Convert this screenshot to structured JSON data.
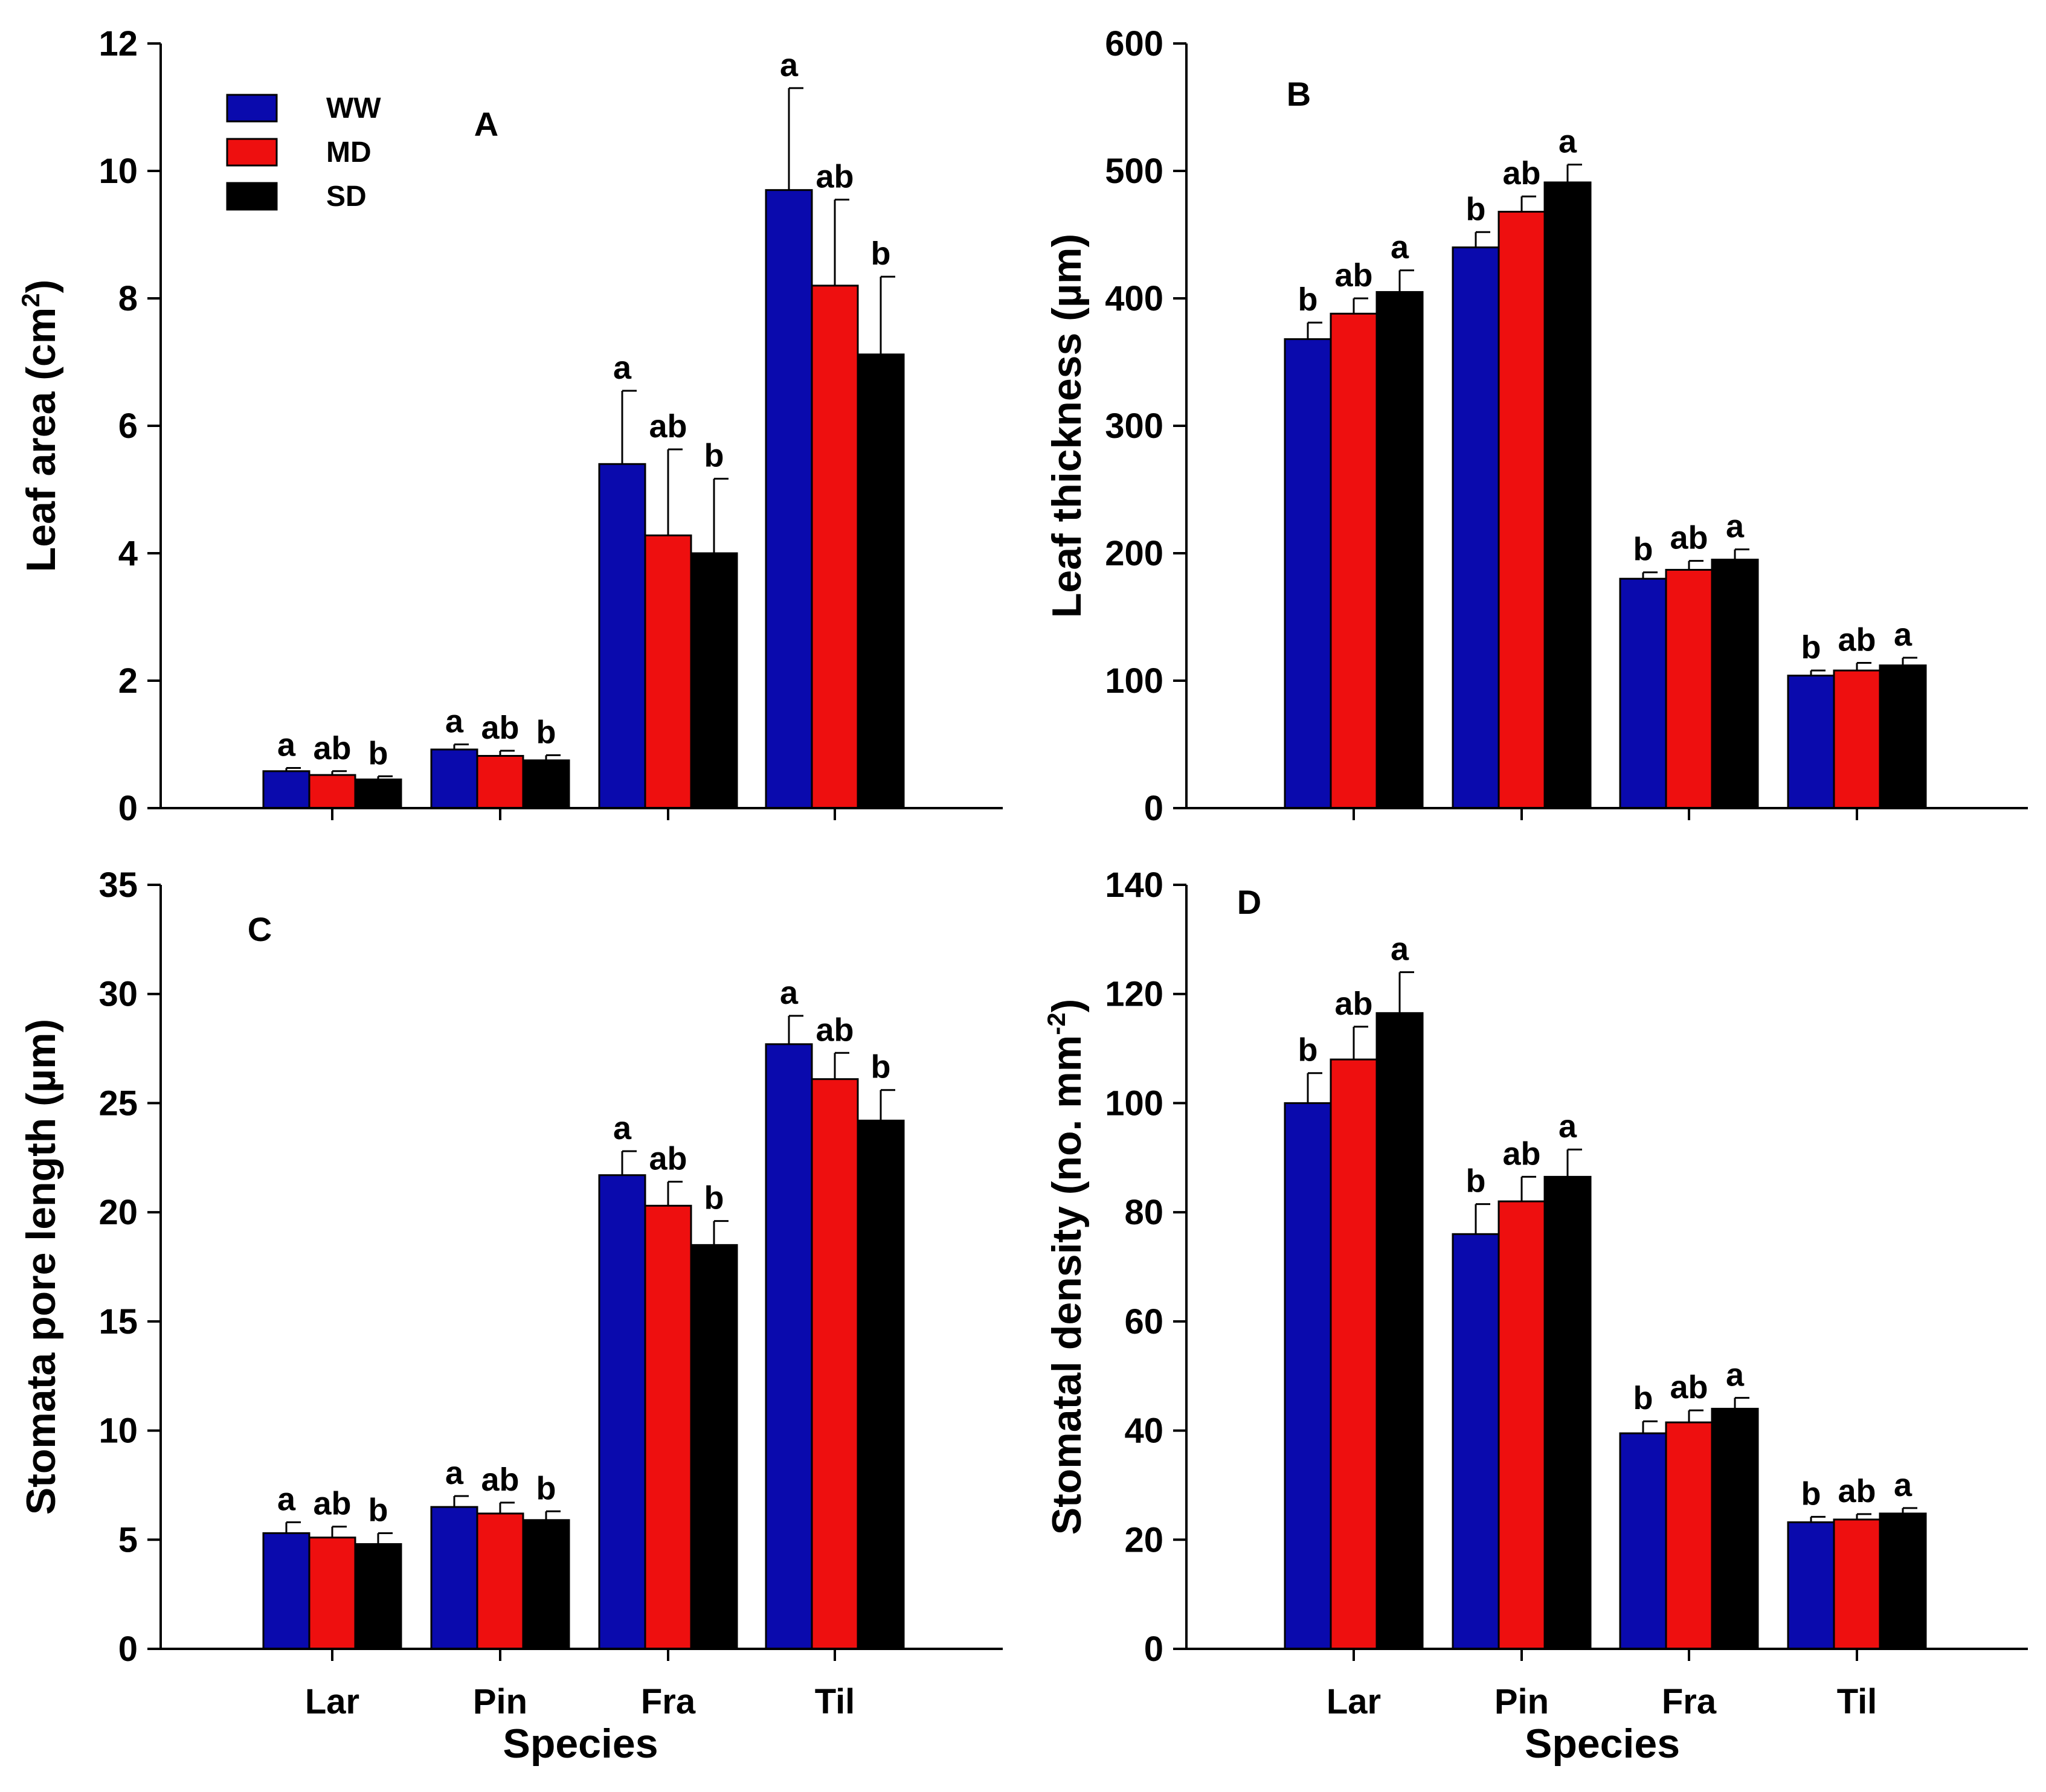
{
  "figure": {
    "legend": [
      {
        "name": "WW",
        "color": "#0a0aad"
      },
      {
        "name": "MD",
        "color": "#ee0f0f"
      },
      {
        "name": "SD",
        "color": "#000000"
      }
    ]
  },
  "chart_data": [
    {
      "panel": "A",
      "type": "bar",
      "categories": [
        "Lar",
        "Pin",
        "Fra",
        "Til"
      ],
      "xlabel": "",
      "ylabel": "Leaf area (cm²)",
      "ylabel_main": "Leaf area (cm",
      "ylabel_sup": "2",
      "ylabel_end": ")",
      "ylim": [
        0,
        12
      ],
      "yticks": [
        0,
        2,
        4,
        6,
        8,
        10,
        12
      ],
      "series": [
        {
          "name": "WW",
          "values": [
            0.58,
            0.92,
            5.4,
            9.7
          ],
          "errors": [
            0.05,
            0.08,
            1.15,
            1.6
          ],
          "labels": [
            "a",
            "a",
            "a",
            "a"
          ]
        },
        {
          "name": "MD",
          "values": [
            0.52,
            0.82,
            4.28,
            8.2
          ],
          "errors": [
            0.06,
            0.08,
            1.35,
            1.35
          ],
          "labels": [
            "ab",
            "ab",
            "ab",
            "ab"
          ]
        },
        {
          "name": "SD",
          "values": [
            0.45,
            0.75,
            4.0,
            7.12
          ],
          "errors": [
            0.05,
            0.08,
            1.17,
            1.22
          ],
          "labels": [
            "b",
            "b",
            "b",
            "b"
          ]
        }
      ]
    },
    {
      "panel": "B",
      "type": "bar",
      "categories": [
        "Lar",
        "Pin",
        "Fra",
        "Til"
      ],
      "xlabel": "",
      "ylabel": "Leaf thickness (µm)",
      "ylim": [
        0,
        600
      ],
      "yticks": [
        0,
        100,
        200,
        300,
        400,
        500,
        600
      ],
      "series": [
        {
          "name": "WW",
          "values": [
            368,
            440,
            180,
            104
          ],
          "errors": [
            13,
            12,
            5,
            4
          ],
          "labels": [
            "b",
            "b",
            "b",
            "b"
          ]
        },
        {
          "name": "MD",
          "values": [
            388,
            468,
            187,
            108
          ],
          "errors": [
            12,
            12,
            7,
            6
          ],
          "labels": [
            "ab",
            "ab",
            "ab",
            "ab"
          ]
        },
        {
          "name": "SD",
          "values": [
            405,
            491,
            195,
            112
          ],
          "errors": [
            17,
            14,
            8,
            6
          ],
          "labels": [
            "a",
            "a",
            "a",
            "a"
          ]
        }
      ]
    },
    {
      "panel": "C",
      "type": "bar",
      "categories": [
        "Lar",
        "Pin",
        "Fra",
        "Til"
      ],
      "xlabel": "Species",
      "ylabel": "Stomata pore length (µm)",
      "ylim": [
        0,
        35
      ],
      "yticks": [
        0,
        5,
        10,
        15,
        20,
        25,
        30,
        35
      ],
      "series": [
        {
          "name": "WW",
          "values": [
            5.3,
            6.5,
            21.7,
            27.7
          ],
          "errors": [
            0.5,
            0.5,
            1.1,
            1.3
          ],
          "labels": [
            "a",
            "a",
            "a",
            "a"
          ]
        },
        {
          "name": "MD",
          "values": [
            5.1,
            6.2,
            20.3,
            26.1
          ],
          "errors": [
            0.5,
            0.5,
            1.1,
            1.2
          ],
          "labels": [
            "ab",
            "ab",
            "ab",
            "ab"
          ]
        },
        {
          "name": "SD",
          "values": [
            4.8,
            5.9,
            18.5,
            24.2
          ],
          "errors": [
            0.5,
            0.4,
            1.1,
            1.4
          ],
          "labels": [
            "b",
            "b",
            "b",
            "b"
          ]
        }
      ]
    },
    {
      "panel": "D",
      "type": "bar",
      "categories": [
        "Lar",
        "Pin",
        "Fra",
        "Til"
      ],
      "xlabel": "Species",
      "ylabel": "Stomatal density (no. mm⁻²)",
      "ylabel_main": "Stomatal density (no. mm",
      "ylabel_sup": "-2",
      "ylabel_end": ")",
      "ylim": [
        0,
        140
      ],
      "yticks": [
        0,
        20,
        40,
        60,
        80,
        100,
        120,
        140
      ],
      "series": [
        {
          "name": "WW",
          "values": [
            100,
            76,
            39.5,
            23.2
          ],
          "errors": [
            5.5,
            5.5,
            2.2,
            1.0
          ],
          "labels": [
            "b",
            "b",
            "b",
            "b"
          ]
        },
        {
          "name": "MD",
          "values": [
            108,
            82,
            41.5,
            23.7
          ],
          "errors": [
            6,
            4.5,
            2.2,
            1.0
          ],
          "labels": [
            "ab",
            "ab",
            "ab",
            "ab"
          ]
        },
        {
          "name": "SD",
          "values": [
            116.5,
            86.5,
            44,
            24.8
          ],
          "errors": [
            7.5,
            5,
            2,
            1.0
          ],
          "labels": [
            "a",
            "a",
            "a",
            "a"
          ]
        }
      ]
    }
  ]
}
